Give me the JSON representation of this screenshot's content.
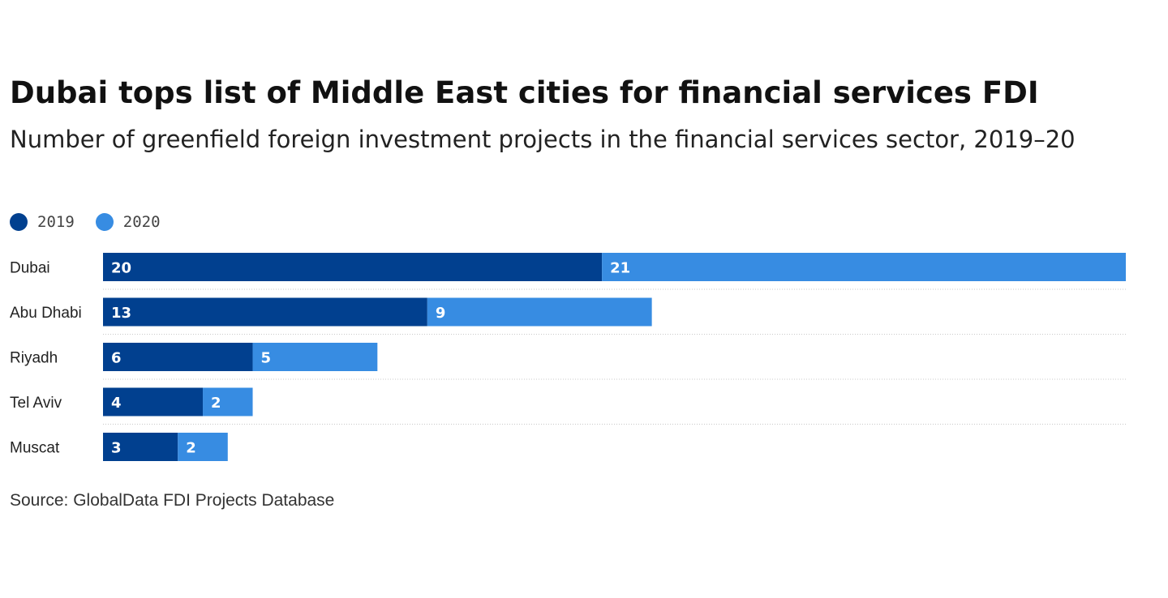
{
  "title": "Dubai tops list of Middle East cities for financial services FDI",
  "subtitle": "Number of greenfield foreign investment projects in the financial services sector, 2019–20",
  "source": "Source: GlobalData FDI Projects Database",
  "colors": {
    "series_2019": "#01408f",
    "series_2020": "#378ce2"
  },
  "chart_data": {
    "type": "bar",
    "orientation": "horizontal",
    "stacked": true,
    "title": "Dubai tops list of Middle East cities for financial services FDI",
    "subtitle": "Number of greenfield foreign investment projects in the financial services sector, 2019–20",
    "categories": [
      "Dubai",
      "Abu Dhabi",
      "Riyadh",
      "Tel Aviv",
      "Muscat"
    ],
    "series": [
      {
        "name": "2019",
        "values": [
          20,
          13,
          6,
          4,
          3
        ]
      },
      {
        "name": "2020",
        "values": [
          21,
          9,
          5,
          2,
          2
        ]
      }
    ],
    "xlim": [
      0,
      41
    ],
    "legend": "top-left",
    "grid": false,
    "data_labels": true
  }
}
